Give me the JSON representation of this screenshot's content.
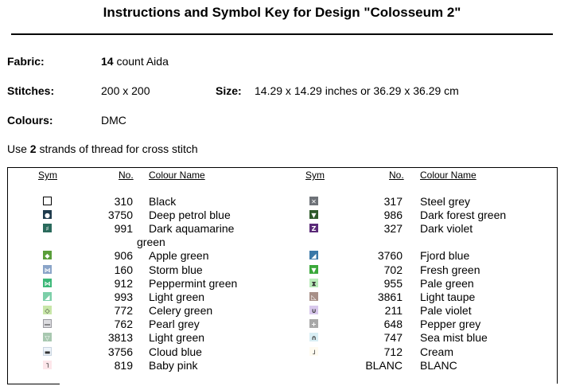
{
  "title": "Instructions and Symbol Key for Design \"Colosseum 2\"",
  "fabric": {
    "label": "Fabric:",
    "count": "14",
    "rest": " count Aida"
  },
  "stitches": {
    "label": "Stitches:",
    "value": "200 x 200"
  },
  "size": {
    "label": "Size:",
    "value": "14.29 x 14.29 inches or 36.29 x 36.29 cm"
  },
  "colours": {
    "label": "Colours:",
    "value": "DMC"
  },
  "note": {
    "pre": "Use ",
    "strands": "2",
    "post": " strands of thread for cross stitch"
  },
  "headers": {
    "sym": "Sym",
    "no": "No.",
    "name": "Colour Name"
  },
  "left_rows": [
    {
      "no": "310",
      "name": "Black",
      "color": "#ffffff",
      "border": "#000000",
      "glyph": ""
    },
    {
      "no": "3750",
      "name": "Deep petrol blue",
      "color": "#1f3b4d",
      "border": "#1f3b4d",
      "glyph": "●"
    },
    {
      "no": "991",
      "name": "Dark aquamarine",
      "color": "#2a6a5c",
      "border": "#2a6a5c",
      "glyph": "♯"
    },
    {
      "no": "906",
      "name": "Apple green",
      "color": "#5a9e3a",
      "border": "#5a9e3a",
      "glyph": "◆"
    },
    {
      "no": "160",
      "name": "Storm blue",
      "color": "#8aa4c8",
      "border": "#8aa4c8",
      "glyph": "⋈"
    },
    {
      "no": "912",
      "name": "Peppermint green",
      "color": "#3cb878",
      "border": "#3cb878",
      "glyph": "⋈"
    },
    {
      "no": "993",
      "name": "Light green",
      "color": "#7ccfa8",
      "border": "#7ccfa8",
      "glyph": "◢"
    },
    {
      "no": "772",
      "name": "Celery green",
      "color": "#c8e6a8",
      "border": "#c8e6a8",
      "glyph": "◇"
    },
    {
      "no": "762",
      "name": "Pearl grey",
      "color": "#dcdce0",
      "border": "#9a9aa0",
      "glyph": "—"
    },
    {
      "no": "3813",
      "name": "Light green",
      "color": "#a8c8b0",
      "border": "#a8c8b0",
      "glyph": "▽"
    },
    {
      "no": "3756",
      "name": "Cloud blue",
      "color": "#eef4fa",
      "border": "#c8d4e0",
      "glyph": "▬"
    },
    {
      "no": "819",
      "name": "Baby pink",
      "color": "#fde6ea",
      "border": "#fde6ea",
      "glyph": "˥"
    }
  ],
  "left_continuation": "green",
  "right_rows": [
    {
      "no": "317",
      "name": "Steel grey",
      "color": "#6e7278",
      "border": "#6e7278",
      "glyph": "✕"
    },
    {
      "no": "986",
      "name": "Dark forest green",
      "color": "#2e5a2a",
      "border": "#2e5a2a",
      "glyph": "▼"
    },
    {
      "no": "327",
      "name": "Dark violet",
      "color": "#5a2a78",
      "border": "#5a2a78",
      "glyph": "Z"
    },
    {
      "no": "3760",
      "name": "Fjord blue",
      "color": "#3a78a8",
      "border": "#3a78a8",
      "glyph": "◢"
    },
    {
      "no": "702",
      "name": "Fresh green",
      "color": "#3aa83a",
      "border": "#3aa83a",
      "glyph": "▼"
    },
    {
      "no": "955",
      "name": "Pale green",
      "color": "#b8ecb8",
      "border": "#b8ecb8",
      "glyph": "⧗"
    },
    {
      "no": "3861",
      "name": "Light taupe",
      "color": "#a89088",
      "border": "#a89088",
      "glyph": "◺"
    },
    {
      "no": "211",
      "name": "Pale violet",
      "color": "#d8c8ec",
      "border": "#d8c8ec",
      "glyph": "∪"
    },
    {
      "no": "648",
      "name": "Pepper grey",
      "color": "#a8a8a8",
      "border": "#a8a8a8",
      "glyph": "+"
    },
    {
      "no": "747",
      "name": "Sea mist blue",
      "color": "#d8eef4",
      "border": "#d8eef4",
      "glyph": "∩"
    },
    {
      "no": "712",
      "name": "Cream",
      "color": "#fffbf0",
      "border": "#fffbf0",
      "glyph": "˩"
    },
    {
      "no": "BLANC",
      "name": "BLANC",
      "color": "#ffffff",
      "border": "#ffffff",
      "glyph": ""
    }
  ]
}
